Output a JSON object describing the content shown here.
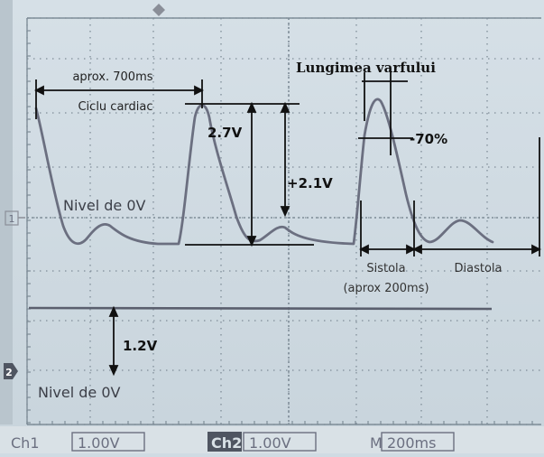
{
  "channel_markers": {
    "ch1": "1",
    "ch2": "2"
  },
  "annotations": {
    "cycle_duration": "aprox. 700ms",
    "cycle_label": "Ciclu cardiac",
    "peak_length_title": "Lungimea varfului",
    "amplitude_total": "2.7V",
    "amplitude_pulse": "+2.1V",
    "peak_percent": "-70%",
    "zero_level_ch1": "Nivel de 0V",
    "systole": "Sistola",
    "systole_duration": "(aprox 200ms)",
    "diastole": "Diastola",
    "offset_ch2": "1.2V",
    "zero_level_ch2": "Nivel de 0V"
  },
  "status_bar": {
    "ch1_label": "Ch1",
    "ch1_scale": "1.00V",
    "ch2_label": "Ch2",
    "ch2_scale": "1.00V",
    "time_label": "M",
    "time_scale": "200ms"
  },
  "colors": {
    "screen_background": "#cfdbe3",
    "grid": "#7f8d98",
    "trace": "#6b6f80",
    "annotation": "#111111",
    "status_bar": "#d9e1e6"
  }
}
